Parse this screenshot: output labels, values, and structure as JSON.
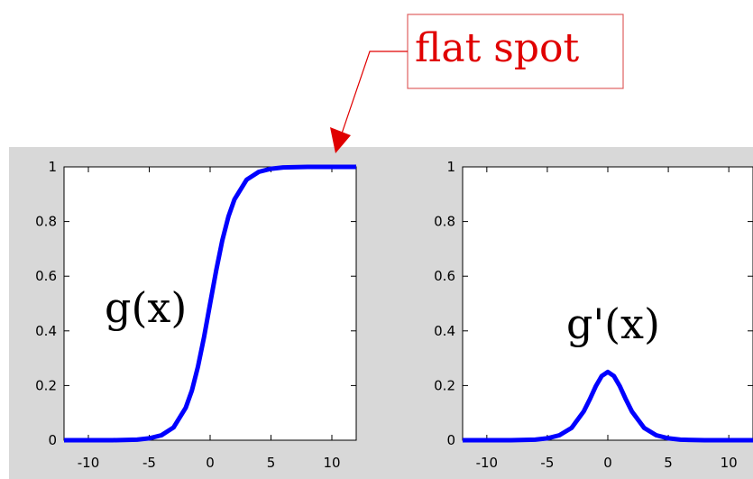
{
  "annotation": {
    "text": "flat spot",
    "color": "#e00000"
  },
  "colors": {
    "figure_background": "#d8d8d8",
    "plot_background": "#ffffff",
    "curve": "#0000ff"
  },
  "chart_data": [
    {
      "type": "line",
      "title": "",
      "xlabel": "",
      "ylabel": "",
      "xlim": [
        -12,
        12
      ],
      "ylim": [
        0,
        1
      ],
      "xticks": [
        -10,
        -5,
        0,
        5,
        10
      ],
      "xtick_labels": [
        "-10",
        "-5",
        "0",
        "5",
        "10"
      ],
      "yticks": [
        0,
        0.2,
        0.4,
        0.6,
        0.8,
        1
      ],
      "ytick_labels": [
        "0",
        "0.2",
        "0.4",
        "0.6",
        "0.8",
        "1"
      ],
      "grid": false,
      "curve_label": "g(x)",
      "series": [
        {
          "x": [
            -12,
            -10,
            -8,
            -6,
            -5,
            -4,
            -3,
            -2,
            -1.5,
            -1,
            -0.5,
            0,
            0.5,
            1,
            1.5,
            2,
            3,
            4,
            5,
            6,
            8,
            10,
            12
          ],
          "y": [
            0.0,
            0.0,
            0.0,
            0.002,
            0.007,
            0.018,
            0.047,
            0.119,
            0.182,
            0.269,
            0.378,
            0.5,
            0.622,
            0.731,
            0.818,
            0.881,
            0.953,
            0.982,
            0.993,
            0.998,
            1.0,
            1.0,
            1.0
          ]
        }
      ]
    },
    {
      "type": "line",
      "title": "",
      "xlabel": "",
      "ylabel": "",
      "xlim": [
        -12,
        12
      ],
      "ylim": [
        0,
        1
      ],
      "xticks": [
        -10,
        -5,
        0,
        5,
        10
      ],
      "xtick_labels": [
        "-10",
        "-5",
        "0",
        "5",
        "10"
      ],
      "yticks": [
        0,
        0.2,
        0.4,
        0.6,
        0.8,
        1
      ],
      "ytick_labels": [
        "0",
        "0.2",
        "0.4",
        "0.6",
        "0.8",
        "1"
      ],
      "grid": false,
      "curve_label": "g'(x)",
      "series": [
        {
          "x": [
            -12,
            -10,
            -8,
            -6,
            -5,
            -4,
            -3,
            -2,
            -1.5,
            -1,
            -0.5,
            0,
            0.5,
            1,
            1.5,
            2,
            3,
            4,
            5,
            6,
            8,
            10,
            12
          ],
          "y": [
            0.0,
            0.0,
            0.0,
            0.002,
            0.007,
            0.018,
            0.045,
            0.105,
            0.149,
            0.197,
            0.235,
            0.25,
            0.235,
            0.197,
            0.149,
            0.105,
            0.045,
            0.018,
            0.007,
            0.002,
            0.0,
            0.0,
            0.0
          ]
        }
      ]
    }
  ]
}
